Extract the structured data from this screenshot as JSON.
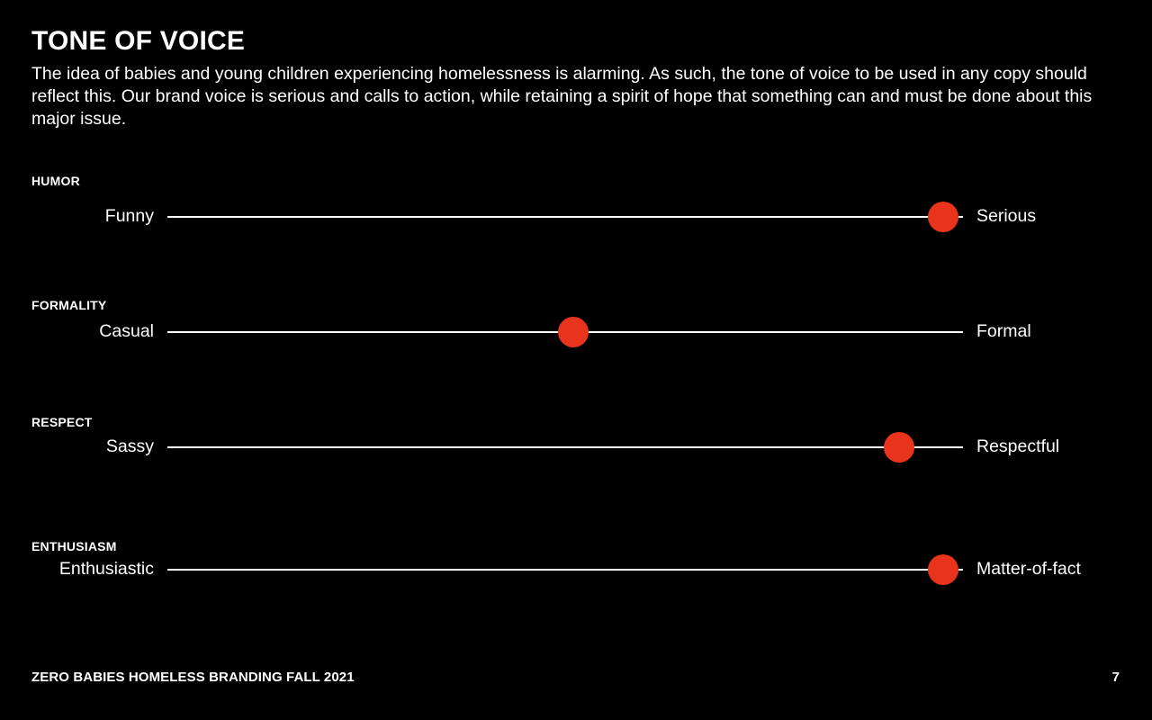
{
  "page": {
    "title": "TONE OF VOICE",
    "intro": "The idea of babies and young children experiencing homelessness is alarming. As such, the tone of voice to be used in any copy should reflect this. Our brand voice is serious and calls to action, while retaining a spirit of hope that something can and must be done about this major issue.",
    "accent_color": "#e8341c"
  },
  "scales": [
    {
      "heading": "HUMOR",
      "left": "Funny",
      "right": "Serious",
      "value": 0.975
    },
    {
      "heading": "FORMALITY",
      "left": "Casual",
      "right": "Formal",
      "value": 0.51
    },
    {
      "heading": "RESPECT",
      "left": "Sassy",
      "right": "Respectful",
      "value": 0.92
    },
    {
      "heading": "ENTHUSIASM",
      "left": "Enthusiastic",
      "right": "Matter-of-fact",
      "value": 0.975
    }
  ],
  "footer": {
    "left": "ZERO BABIES HOMELESS BRANDING FALL 2021",
    "page_number": "7"
  }
}
